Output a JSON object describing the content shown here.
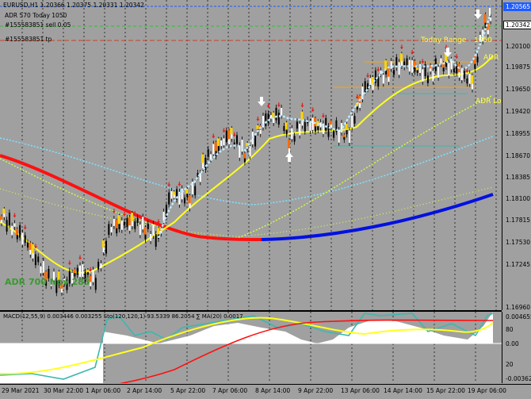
{
  "header": {
    "symbol_line": "EURUSD,H1  1.20366 1.20375 1.20331 1.20342",
    "adr_line": "ADR 570  Today 1050",
    "order1": "#155583851 sell 0.05",
    "order2": "#155583851 tp"
  },
  "overlay_labels": {
    "today_range": "Today Range",
    "today_range_value": "1050",
    "adr_high": "ADR Hi",
    "adr_low": "ADR Lo",
    "adr_bottom": "ADR 700   Nov 283"
  },
  "price_axis": {
    "labels": [
      "1.20565",
      "1.20342",
      "1.20100",
      "1.19875",
      "1.19650",
      "1.19420",
      "1.18955",
      "1.18670",
      "1.18385",
      "1.18100",
      "1.17815",
      "1.17530",
      "1.17245",
      "1.16960"
    ],
    "current_price": "1.20342",
    "top_price": "1.20565"
  },
  "indicator": {
    "label": "MACD(12,55,9) 0.003446 0.003255  Sto(120,120,1) 93.5339 86.2054  ∑ MA(20) 0.0017",
    "axis_labels": [
      "0.004655",
      "80",
      "0.00",
      "20",
      "-0.003623"
    ]
  },
  "time_axis": {
    "labels": [
      "29 Mar 2021",
      "30 Mar 22:00",
      "1 Apr 06:00",
      "2 Apr 14:00",
      "5 Apr 22:00",
      "7 Apr 06:00",
      "8 Apr 14:00",
      "9 Apr 22:00",
      "13 Apr 06:00",
      "14 Apr 14:00",
      "15 Apr 22:00",
      "19 Apr 06:00"
    ]
  },
  "colors": {
    "background": "#a0a0a0",
    "grid": "#000000",
    "ma_red": "#ff1010",
    "ma_blue": "#0010e0",
    "yellow": "#ffff20",
    "teal": "#3ab8b0",
    "adr_line": "#ffa500"
  }
}
